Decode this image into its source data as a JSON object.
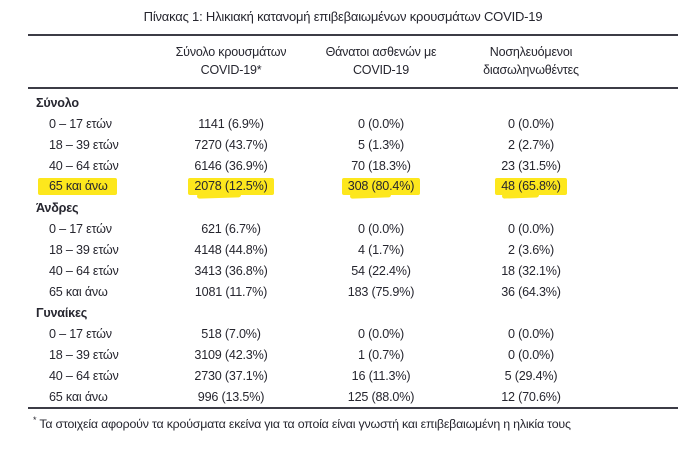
{
  "title": "Πίνακας 1: Ηλικιακή κατανομή επιβεβαιωμένων κρουσμάτων COVID-19",
  "table": {
    "columns": [
      {
        "line1": "Σύνολο κρουσμάτων",
        "line2": "COVID-19*"
      },
      {
        "line1": "Θάνατοι ασθενών με",
        "line2": "COVID-19"
      },
      {
        "line1": "Νοσηλευόμενοι",
        "line2": "διασωληνωθέντες"
      }
    ],
    "sections": [
      {
        "label": "Σύνολο",
        "rows": [
          {
            "age": "0 – 17 ετών",
            "cases": "1141 (6.9%)",
            "deaths": "0 (0.0%)",
            "intubated": "0 (0.0%)",
            "highlight": false
          },
          {
            "age": "18 – 39 ετών",
            "cases": "7270 (43.7%)",
            "deaths": "5 (1.3%)",
            "intubated": "2 (2.7%)",
            "highlight": false
          },
          {
            "age": "40 – 64 ετών",
            "cases": "6146 (36.9%)",
            "deaths": "70 (18.3%)",
            "intubated": "23 (31.5%)",
            "highlight": false
          },
          {
            "age": "65 και άνω",
            "cases": "2078 (12.5%)",
            "deaths": "308 (80.4%)",
            "intubated": "48 (65.8%)",
            "highlight": true
          }
        ]
      },
      {
        "label": "Άνδρες",
        "rows": [
          {
            "age": "0 – 17 ετών",
            "cases": "621 (6.7%)",
            "deaths": "0 (0.0%)",
            "intubated": "0 (0.0%)",
            "highlight": false
          },
          {
            "age": "18 – 39 ετών",
            "cases": "4148 (44.8%)",
            "deaths": "4 (1.7%)",
            "intubated": "2 (3.6%)",
            "highlight": false
          },
          {
            "age": "40 – 64 ετών",
            "cases": "3413 (36.8%)",
            "deaths": "54 (22.4%)",
            "intubated": "18 (32.1%)",
            "highlight": false
          },
          {
            "age": "65 και άνω",
            "cases": "1081 (11.7%)",
            "deaths": "183 (75.9%)",
            "intubated": "36 (64.3%)",
            "highlight": false
          }
        ]
      },
      {
        "label": "Γυναίκες",
        "rows": [
          {
            "age": "0 – 17 ετών",
            "cases": "518 (7.0%)",
            "deaths": "0 (0.0%)",
            "intubated": "0 (0.0%)",
            "highlight": false
          },
          {
            "age": "18 – 39 ετών",
            "cases": "3109 (42.3%)",
            "deaths": "1 (0.7%)",
            "intubated": "0 (0.0%)",
            "highlight": false
          },
          {
            "age": "40 – 64 ετών",
            "cases": "2730 (37.1%)",
            "deaths": "16 (11.3%)",
            "intubated": "5 (29.4%)",
            "highlight": false
          },
          {
            "age": "65 και άνω",
            "cases": "996 (13.5%)",
            "deaths": "125 (88.0%)",
            "intubated": "12 (70.6%)",
            "highlight": false
          }
        ]
      }
    ]
  },
  "footnote": {
    "marker": "*",
    "text": "Τα στοιχεία αφορούν τα κρούσματα εκείνα για τα οποία είναι γνωστή και επιβεβαιωμένη η ηλικία τους"
  },
  "colors": {
    "highlight": "#fde71d",
    "text": "#26262f",
    "rule": "#3c3c46"
  }
}
